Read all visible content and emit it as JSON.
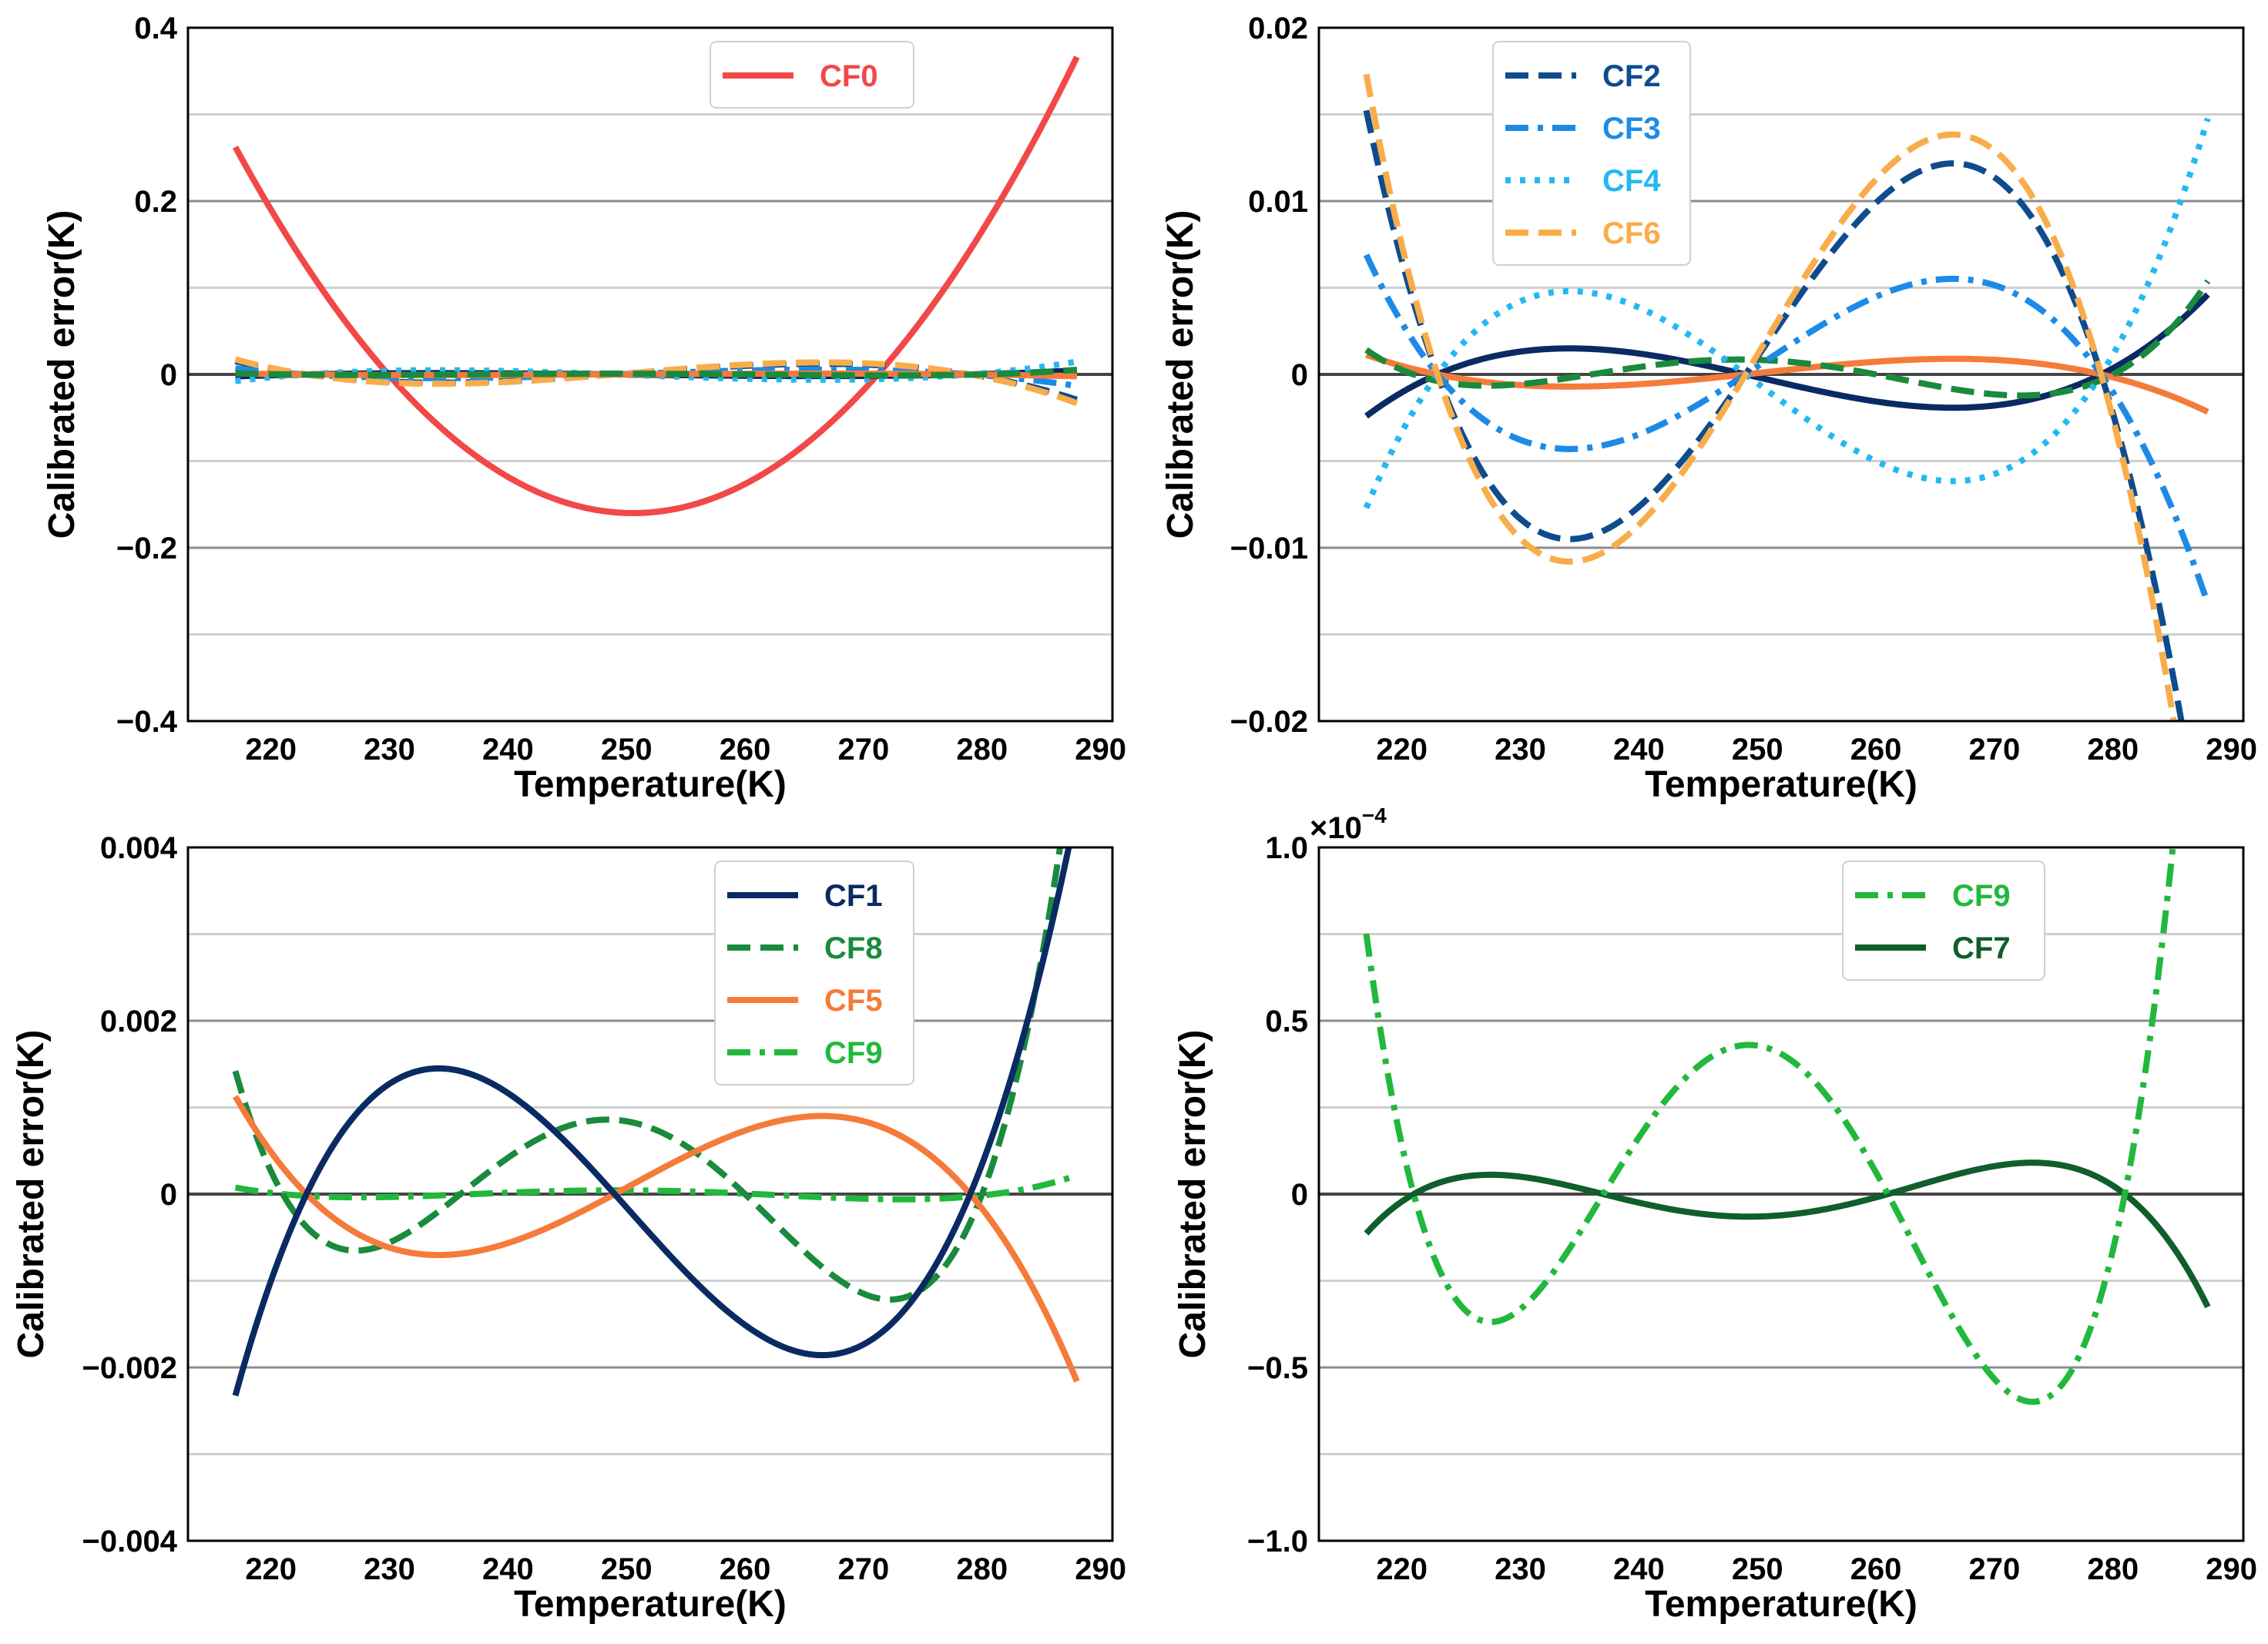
{
  "figure": {
    "panels": [
      "top-left",
      "top-right",
      "bottom-left",
      "bottom-right"
    ]
  },
  "chart_data": [
    {
      "id": "top-left",
      "type": "line",
      "xlabel": "Temperature(K)",
      "ylabel": "Calibrated error(K)",
      "xlim": [
        213,
        291
      ],
      "ylim": [
        -0.4,
        0.4
      ],
      "xticks": [
        220,
        230,
        240,
        250,
        260,
        270,
        280,
        290
      ],
      "yticks": [
        -0.4,
        -0.2,
        0,
        0.2,
        0.4
      ],
      "ytick_labels": [
        "−0.4",
        "−0.2",
        "0",
        "0.2",
        "0.4"
      ],
      "xtick_labels": [
        "220",
        "230",
        "240",
        "250",
        "260",
        "270",
        "280",
        "290"
      ],
      "grid": {
        "major": [
          -0.2,
          0.2
        ],
        "minor": [
          -0.3,
          -0.1,
          0.1,
          0.3
        ],
        "zero": true
      },
      "legend_position": "top-center",
      "legend": [
        "CF0"
      ],
      "series": [
        {
          "name": "CF0",
          "color": "#f24848",
          "dash": "solid",
          "x_range": [
            217,
            288
          ],
          "roots": [
            229.9,
            271.2
          ],
          "peak": [
            250.5,
            -0.16
          ],
          "in_legend": true
        },
        {
          "name": "CF1",
          "color": "#0a2a63",
          "dash": "solid",
          "x_range": [
            217,
            288
          ],
          "roots": [
            223,
            249,
            279
          ],
          "peak": [
            234,
            0.0015
          ],
          "in_legend": false
        },
        {
          "name": "CF2",
          "color": "#0e4c8e",
          "dash": "dashed",
          "x_range": [
            217,
            288
          ],
          "roots": [
            223,
            249,
            279
          ],
          "peak": [
            234,
            -0.0095
          ],
          "in_legend": false
        },
        {
          "name": "CF3",
          "color": "#1c8be8",
          "dash": "dashdot",
          "x_range": [
            217,
            288
          ],
          "roots": [
            223,
            249,
            279
          ],
          "peak": [
            234.5,
            -0.0043
          ],
          "in_legend": false
        },
        {
          "name": "CF4",
          "color": "#25b8f0",
          "dash": "dotted",
          "x_range": [
            217,
            288
          ],
          "roots": [
            223,
            249,
            279
          ],
          "peak": [
            234.5,
            0.0048
          ],
          "in_legend": false
        },
        {
          "name": "CF6",
          "color": "#f8ad4a",
          "dash": "dashed",
          "x_range": [
            217,
            288
          ],
          "roots": [
            223,
            249,
            279
          ],
          "peak": [
            234,
            -0.0108
          ],
          "in_legend": false
        },
        {
          "name": "CF5",
          "color": "#f57b3a",
          "dash": "solid",
          "x_range": [
            217,
            288
          ],
          "roots": [
            223,
            249,
            279
          ],
          "peak": [
            235,
            -0.0007
          ],
          "in_legend": false
        },
        {
          "name": "CF8",
          "color": "#1a8a3c",
          "dash": "dashed",
          "x_range": [
            217,
            288
          ],
          "roots": [
            221,
            236,
            260,
            280
          ],
          "peak": [
            249.5,
            0.00085
          ],
          "in_legend": false
        }
      ]
    },
    {
      "id": "top-right",
      "type": "line",
      "xlabel": "Temperature(K)",
      "ylabel": "Calibrated error(K)",
      "xlim": [
        213,
        291
      ],
      "ylim": [
        -0.02,
        0.02
      ],
      "xticks": [
        220,
        230,
        240,
        250,
        260,
        270,
        280,
        290
      ],
      "yticks": [
        -0.02,
        -0.01,
        0,
        0.01,
        0.02
      ],
      "ytick_labels": [
        "−0.02",
        "−0.01",
        "0",
        "0.01",
        "0.02"
      ],
      "xtick_labels": [
        "220",
        "230",
        "240",
        "250",
        "260",
        "270",
        "280",
        "290"
      ],
      "grid": {
        "major": [
          -0.01,
          0.01
        ],
        "minor": [
          -0.015,
          -0.005,
          0.005,
          0.015
        ],
        "zero": true
      },
      "legend_position": "top-left",
      "legend": [
        "CF2",
        "CF3",
        "CF4",
        "CF6"
      ],
      "series": [
        {
          "name": "CF1",
          "color": "#0a2a63",
          "dash": "solid",
          "x_range": [
            217,
            288
          ],
          "roots": [
            223,
            249,
            279
          ],
          "peak": [
            234,
            0.0015
          ],
          "in_legend": false
        },
        {
          "name": "CF5",
          "color": "#f57b3a",
          "dash": "solid",
          "x_range": [
            217,
            288
          ],
          "roots": [
            223,
            249,
            279
          ],
          "peak": [
            235,
            -0.0007
          ],
          "in_legend": false
        },
        {
          "name": "CF8",
          "color": "#1a8a3c",
          "dash": "dashed",
          "x_range": [
            217,
            288
          ],
          "roots": [
            221,
            236,
            260,
            280
          ],
          "peak": [
            249.5,
            0.00085
          ],
          "in_legend": false
        },
        {
          "name": "CF3",
          "color": "#1c8be8",
          "dash": "dashdot",
          "x_range": [
            217,
            288
          ],
          "roots": [
            223,
            249,
            279
          ],
          "peak": [
            234.5,
            -0.0043
          ],
          "in_legend": true
        },
        {
          "name": "CF4",
          "color": "#25b8f0",
          "dash": "dotted",
          "x_range": [
            217,
            288
          ],
          "roots": [
            223,
            249,
            279
          ],
          "peak": [
            234.5,
            0.0048
          ],
          "in_legend": true
        },
        {
          "name": "CF2",
          "color": "#0e4c8e",
          "dash": "dashed",
          "x_range": [
            217,
            288
          ],
          "roots": [
            223,
            249,
            279
          ],
          "peak": [
            234,
            -0.0095
          ],
          "in_legend": true
        },
        {
          "name": "CF6",
          "color": "#f8ad4a",
          "dash": "dashed",
          "x_range": [
            217,
            288
          ],
          "roots": [
            223,
            249,
            279
          ],
          "peak": [
            234,
            -0.0108
          ],
          "in_legend": true
        }
      ]
    },
    {
      "id": "bottom-left",
      "type": "line",
      "xlabel": "Temperature(K)",
      "ylabel": "Calibrated error(K)",
      "xlim": [
        213,
        291
      ],
      "ylim": [
        -0.004,
        0.004
      ],
      "xticks": [
        220,
        230,
        240,
        250,
        260,
        270,
        280,
        290
      ],
      "yticks": [
        -0.004,
        -0.002,
        0,
        0.002,
        0.004
      ],
      "ytick_labels": [
        "−0.004",
        "−0.002",
        "0",
        "0.002",
        "0.004"
      ],
      "xtick_labels": [
        "220",
        "230",
        "240",
        "250",
        "260",
        "270",
        "280",
        "290"
      ],
      "grid": {
        "major": [
          -0.002,
          0.002
        ],
        "minor": [
          -0.003,
          -0.001,
          0.001,
          0.003
        ],
        "zero": true
      },
      "legend_position": "top-right",
      "legend": [
        "CF1",
        "CF8",
        "CF5",
        "CF9"
      ],
      "series": [
        {
          "name": "CF9",
          "color": "#21b83c",
          "dash": "dashdot",
          "x_range": [
            217,
            288
          ],
          "roots": [
            221,
            237,
            261,
            281
          ],
          "peak": [
            249,
            4.3e-05
          ],
          "in_legend": true
        },
        {
          "name": "CF8",
          "color": "#1a8a3c",
          "dash": "dashed",
          "x_range": [
            217,
            288
          ],
          "roots": [
            221,
            236,
            260,
            280
          ],
          "peak": [
            249.5,
            0.00085
          ],
          "in_legend": true
        },
        {
          "name": "CF5",
          "color": "#f57b3a",
          "dash": "solid",
          "x_range": [
            217,
            288
          ],
          "roots": [
            223,
            249,
            279
          ],
          "peak": [
            235,
            -0.0007
          ],
          "in_legend": true
        },
        {
          "name": "CF1",
          "color": "#0a2a63",
          "dash": "solid",
          "x_range": [
            217,
            288
          ],
          "roots": [
            223,
            249,
            279
          ],
          "peak": [
            234,
            0.00145
          ],
          "in_legend": true
        }
      ]
    },
    {
      "id": "bottom-right",
      "type": "line",
      "xlabel": "Temperature(K)",
      "ylabel": "Calibrated error(K)",
      "xlim": [
        213,
        291
      ],
      "ylim": [
        -0.0001,
        0.0001
      ],
      "scale_label": "×10",
      "scale_exponent": "−4",
      "xticks": [
        220,
        230,
        240,
        250,
        260,
        270,
        280,
        290
      ],
      "yticks": [
        -0.0001,
        -5e-05,
        0,
        5e-05,
        0.0001
      ],
      "ytick_labels": [
        "−1.0",
        "−0.5",
        "0",
        "0.5",
        "1.0"
      ],
      "xtick_labels": [
        "220",
        "230",
        "240",
        "250",
        "260",
        "270",
        "280",
        "290"
      ],
      "grid": {
        "major": [
          -5e-05,
          5e-05
        ],
        "minor": [
          -7.5e-05,
          -2.5e-05,
          2.5e-05,
          7.5e-05
        ],
        "zero": true
      },
      "legend_position": "top-center",
      "legend": [
        "CF9",
        "CF7"
      ],
      "series": [
        {
          "name": "CF7",
          "color": "#0f5e2c",
          "dash": "solid",
          "x_range": [
            217,
            288
          ],
          "roots": [
            221,
            237,
            261,
            281
          ],
          "peak": [
            249,
            -6.5e-06
          ],
          "in_legend": true
        },
        {
          "name": "CF9",
          "color": "#21b83c",
          "dash": "dashdot",
          "x_range": [
            217,
            288
          ],
          "roots": [
            221,
            237,
            261,
            281
          ],
          "peak": [
            249,
            4.3e-05
          ],
          "in_legend": true
        }
      ]
    }
  ]
}
